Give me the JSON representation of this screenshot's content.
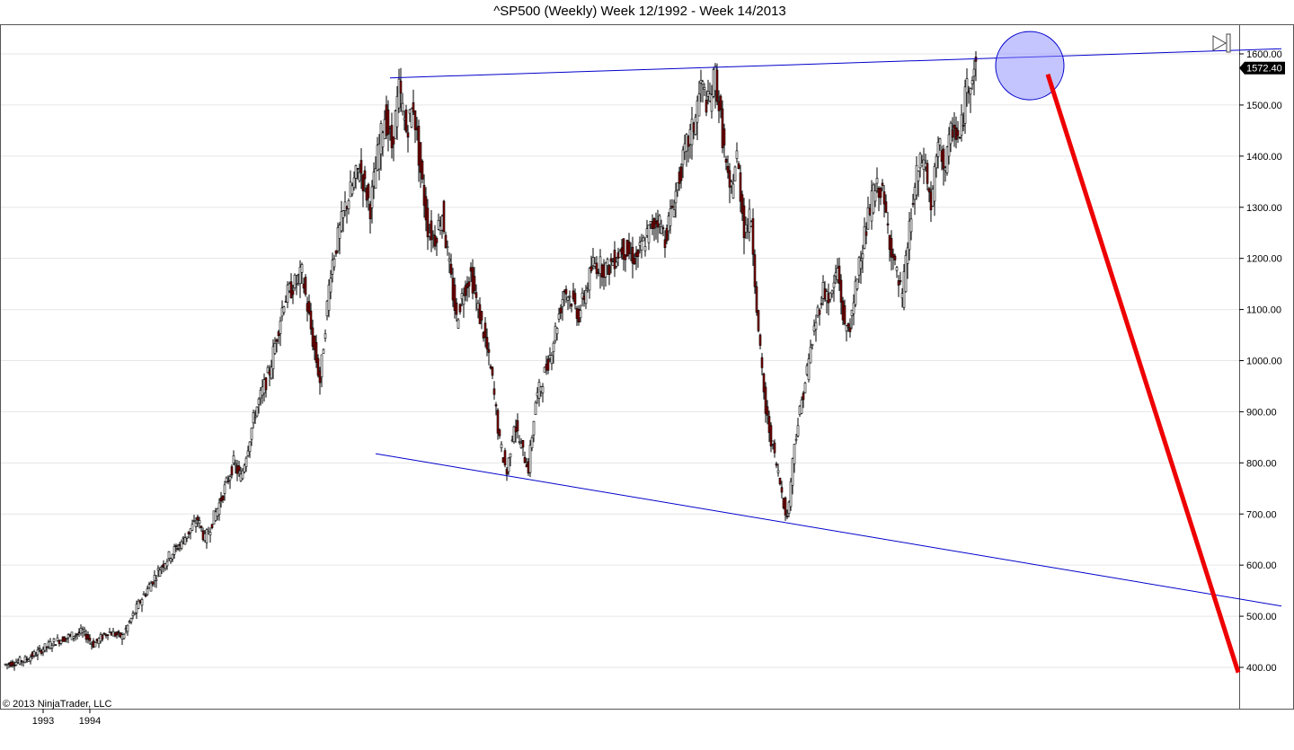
{
  "chart_data": {
    "type": "candlestick",
    "title": "^SP500 (Weekly)  Week 12/1992 - Week 14/2013",
    "copyright": "© 2013 NinjaTrader, LLC",
    "ylim": [
      320,
      1640
    ],
    "y_ticks": [
      400,
      500,
      600,
      700,
      800,
      900,
      1000,
      1100,
      1200,
      1300,
      1400,
      1500,
      1600
    ],
    "y_tick_labels": [
      "400.00",
      "500.00",
      "600.00",
      "700.00",
      "800.00",
      "900.00",
      "1000.00",
      "1100.00",
      "1200.00",
      "1300.00",
      "1400.00",
      "1500.00",
      "1600.00"
    ],
    "x_ticks": [
      "1993",
      "1994"
    ],
    "last_price": 1572.4,
    "last_price_label": "1572.40",
    "colors": {
      "up": "#ffffff",
      "down": "#8b0000",
      "wick": "#000000",
      "trendline": "#0000cc",
      "projection": "#ee0000",
      "highlight_fill": "#8a8aff",
      "grid": "#e6e6e6"
    },
    "price_path": [
      {
        "t": 0,
        "v": 405
      },
      {
        "t": 6,
        "v": 415
      },
      {
        "t": 14,
        "v": 450
      },
      {
        "t": 22,
        "v": 470
      },
      {
        "t": 25,
        "v": 445
      },
      {
        "t": 29,
        "v": 470
      },
      {
        "t": 33,
        "v": 460
      },
      {
        "t": 38,
        "v": 530
      },
      {
        "t": 44,
        "v": 600
      },
      {
        "t": 50,
        "v": 650
      },
      {
        "t": 54,
        "v": 690
      },
      {
        "t": 56,
        "v": 650
      },
      {
        "t": 60,
        "v": 720
      },
      {
        "t": 64,
        "v": 800
      },
      {
        "t": 66,
        "v": 770
      },
      {
        "t": 70,
        "v": 900
      },
      {
        "t": 74,
        "v": 980
      },
      {
        "t": 78,
        "v": 1120
      },
      {
        "t": 80,
        "v": 1140
      },
      {
        "t": 83,
        "v": 1170
      },
      {
        "t": 86,
        "v": 1040
      },
      {
        "t": 88,
        "v": 960
      },
      {
        "t": 91,
        "v": 1180
      },
      {
        "t": 95,
        "v": 1300
      },
      {
        "t": 99,
        "v": 1380
      },
      {
        "t": 102,
        "v": 1300
      },
      {
        "t": 104,
        "v": 1400
      },
      {
        "t": 106,
        "v": 1480
      },
      {
        "t": 108,
        "v": 1420
      },
      {
        "t": 110,
        "v": 1530
      },
      {
        "t": 112,
        "v": 1450
      },
      {
        "t": 114,
        "v": 1500
      },
      {
        "t": 116,
        "v": 1370
      },
      {
        "t": 118,
        "v": 1260
      },
      {
        "t": 120,
        "v": 1240
      },
      {
        "t": 122,
        "v": 1290
      },
      {
        "t": 124,
        "v": 1180
      },
      {
        "t": 126,
        "v": 1080
      },
      {
        "t": 128,
        "v": 1140
      },
      {
        "t": 130,
        "v": 1170
      },
      {
        "t": 132,
        "v": 1100
      },
      {
        "t": 134,
        "v": 1040
      },
      {
        "t": 136,
        "v": 960
      },
      {
        "t": 138,
        "v": 840
      },
      {
        "t": 140,
        "v": 780
      },
      {
        "t": 142,
        "v": 880
      },
      {
        "t": 144,
        "v": 830
      },
      {
        "t": 146,
        "v": 790
      },
      {
        "t": 148,
        "v": 920
      },
      {
        "t": 152,
        "v": 1010
      },
      {
        "t": 156,
        "v": 1140
      },
      {
        "t": 158,
        "v": 1120
      },
      {
        "t": 160,
        "v": 1090
      },
      {
        "t": 164,
        "v": 1190
      },
      {
        "t": 168,
        "v": 1180
      },
      {
        "t": 172,
        "v": 1220
      },
      {
        "t": 176,
        "v": 1200
      },
      {
        "t": 180,
        "v": 1260
      },
      {
        "t": 182,
        "v": 1280
      },
      {
        "t": 184,
        "v": 1240
      },
      {
        "t": 188,
        "v": 1360
      },
      {
        "t": 190,
        "v": 1420
      },
      {
        "t": 192,
        "v": 1460
      },
      {
        "t": 194,
        "v": 1540
      },
      {
        "t": 196,
        "v": 1500
      },
      {
        "t": 198,
        "v": 1560
      },
      {
        "t": 200,
        "v": 1440
      },
      {
        "t": 202,
        "v": 1320
      },
      {
        "t": 204,
        "v": 1400
      },
      {
        "t": 206,
        "v": 1260
      },
      {
        "t": 208,
        "v": 1280
      },
      {
        "t": 210,
        "v": 1050
      },
      {
        "t": 212,
        "v": 900
      },
      {
        "t": 214,
        "v": 830
      },
      {
        "t": 216,
        "v": 760
      },
      {
        "t": 218,
        "v": 690
      },
      {
        "t": 220,
        "v": 840
      },
      {
        "t": 222,
        "v": 920
      },
      {
        "t": 224,
        "v": 1000
      },
      {
        "t": 226,
        "v": 1080
      },
      {
        "t": 228,
        "v": 1140
      },
      {
        "t": 230,
        "v": 1120
      },
      {
        "t": 232,
        "v": 1180
      },
      {
        "t": 234,
        "v": 1060
      },
      {
        "t": 236,
        "v": 1080
      },
      {
        "t": 238,
        "v": 1200
      },
      {
        "t": 240,
        "v": 1260
      },
      {
        "t": 242,
        "v": 1330
      },
      {
        "t": 244,
        "v": 1340
      },
      {
        "t": 246,
        "v": 1260
      },
      {
        "t": 248,
        "v": 1180
      },
      {
        "t": 250,
        "v": 1120
      },
      {
        "t": 252,
        "v": 1260
      },
      {
        "t": 254,
        "v": 1360
      },
      {
        "t": 256,
        "v": 1400
      },
      {
        "t": 258,
        "v": 1300
      },
      {
        "t": 260,
        "v": 1420
      },
      {
        "t": 262,
        "v": 1380
      },
      {
        "t": 264,
        "v": 1460
      },
      {
        "t": 266,
        "v": 1430
      },
      {
        "t": 268,
        "v": 1540
      },
      {
        "t": 270,
        "v": 1572
      }
    ],
    "series_time_range": [
      0,
      270
    ],
    "annotations": {
      "upper_trendline": {
        "from": {
          "t": 107,
          "v": 1553
        },
        "to": {
          "t": 355,
          "v": 1610
        }
      },
      "lower_trendline": {
        "from": {
          "t": 103,
          "v": 818
        },
        "to": {
          "t": 355,
          "v": 520
        }
      },
      "projection_line": {
        "from": {
          "t": 290,
          "v": 1560
        },
        "to": {
          "t": 343,
          "v": 390
        }
      },
      "highlight_circle": {
        "t": 285,
        "v": 1577
      }
    }
  }
}
